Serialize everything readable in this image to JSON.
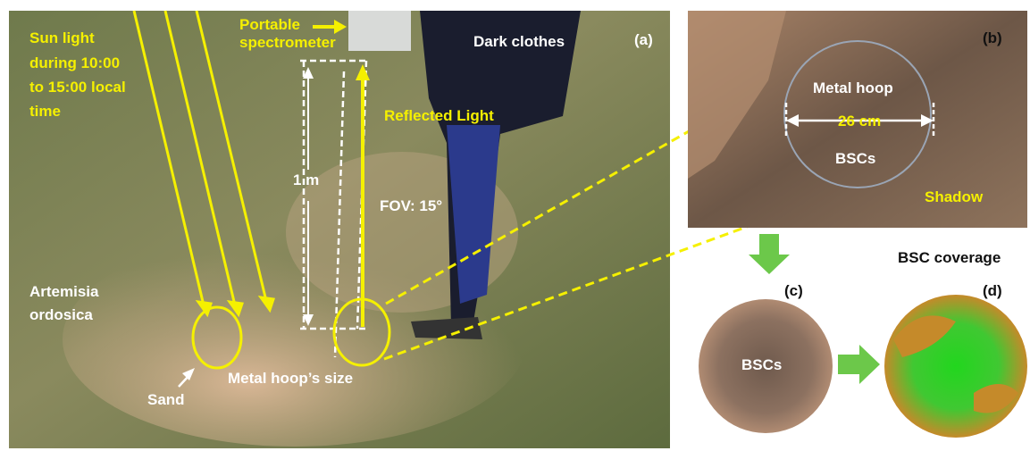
{
  "panel_a": {
    "label": "(a)",
    "sun_light": [
      "Sun light",
      "during 10:00",
      "to 15:00 local",
      "time"
    ],
    "spectrometer": [
      "Portable",
      "spectrometer"
    ],
    "dark_clothes": "Dark clothes",
    "reflected_light": "Reflected Light",
    "height": "1 m",
    "fov": "FOV: 15°",
    "plant": [
      "Artemisia",
      "ordosica"
    ],
    "sand": "Sand",
    "hoop_size": "Metal hoop’s size"
  },
  "panel_b": {
    "label": "(b)",
    "hoop": "Metal hoop",
    "diameter": "26 cm",
    "bscs": "BSCs",
    "shadow": "Shadow"
  },
  "panel_c": {
    "label": "(c)",
    "bscs": "BSCs"
  },
  "panel_d": {
    "label": "(d)",
    "title": "BSC coverage"
  }
}
